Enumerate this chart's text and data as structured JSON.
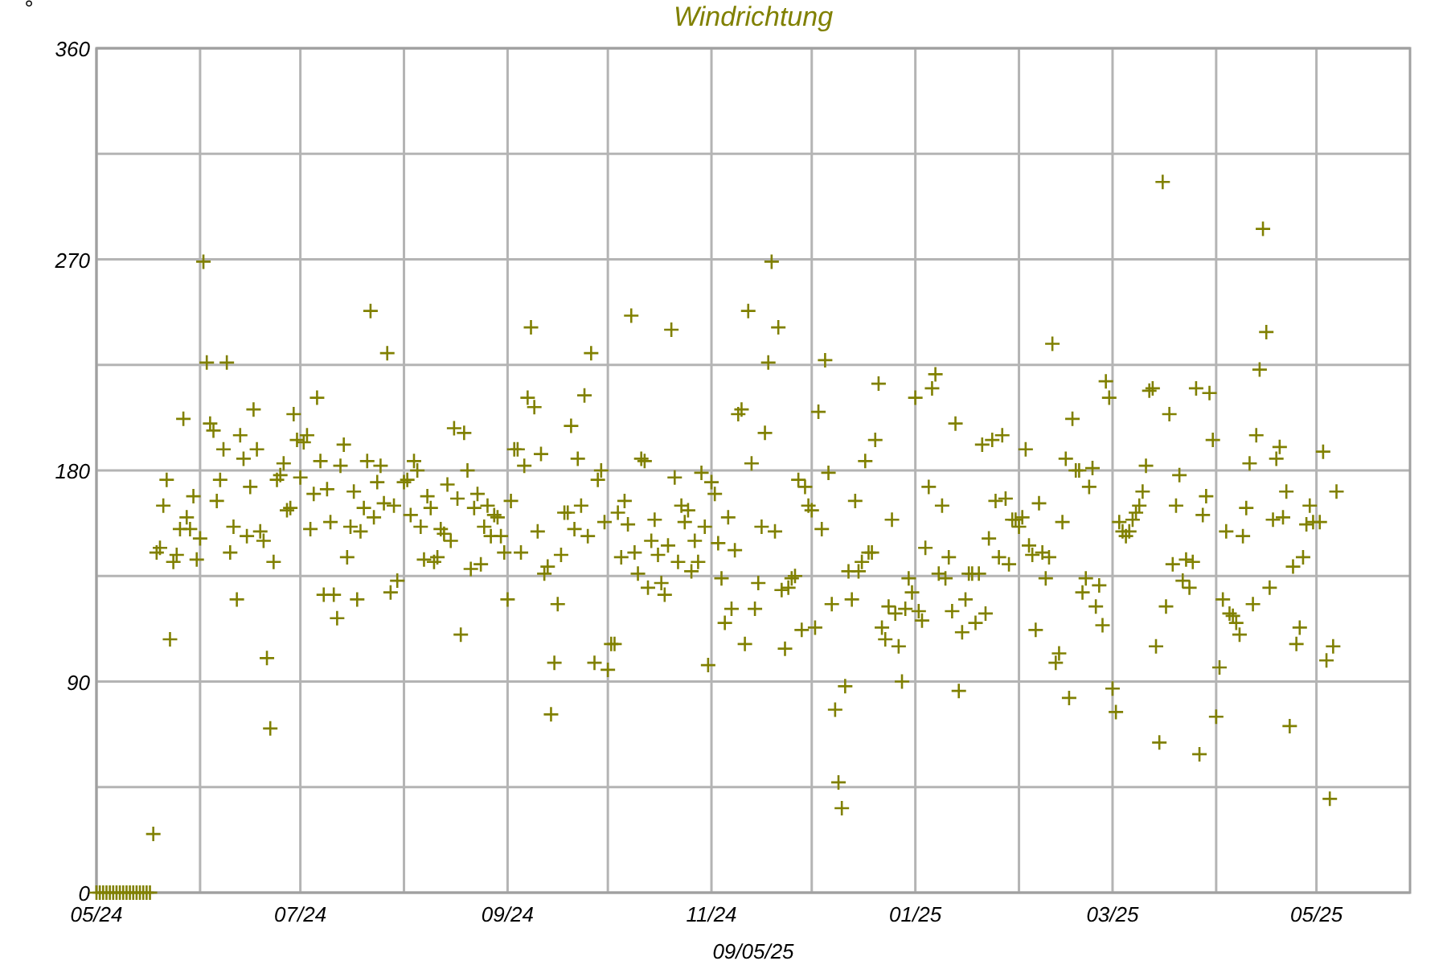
{
  "chart_data": {
    "type": "scatter",
    "title": "Windrichtung",
    "ylabel": "°",
    "xlabel": "09/05/25",
    "marker": "cross",
    "grid": true,
    "xlim": [
      "2024-05-01",
      "2025-05-29"
    ],
    "xticks": [
      {
        "value": "2024-05-01",
        "label": "05/24"
      },
      {
        "value": "2024-06-01",
        "label": null
      },
      {
        "value": "2024-07-01",
        "label": "07/24"
      },
      {
        "value": "2024-08-01",
        "label": null
      },
      {
        "value": "2024-09-01",
        "label": "09/24"
      },
      {
        "value": "2024-10-01",
        "label": null
      },
      {
        "value": "2024-11-01",
        "label": "11/24"
      },
      {
        "value": "2024-12-01",
        "label": null
      },
      {
        "value": "2025-01-01",
        "label": "01/25"
      },
      {
        "value": "2025-02-01",
        "label": null
      },
      {
        "value": "2025-03-01",
        "label": "03/25"
      },
      {
        "value": "2025-04-01",
        "label": null
      },
      {
        "value": "2025-05-01",
        "label": "05/25"
      }
    ],
    "ylim": [
      0,
      360
    ],
    "yticks": [
      0,
      {
        "value": 45,
        "label": null
      },
      90,
      {
        "value": 135,
        "label": null
      },
      180,
      {
        "value": 225,
        "label": null
      },
      270,
      {
        "value": 315,
        "label": null
      },
      360
    ],
    "series": [
      {
        "color": "#808000",
        "x": [
          "2024-05-01",
          "2024-05-02",
          "2024-05-03",
          "2024-05-04",
          "2024-05-05",
          "2024-05-06",
          "2024-05-07",
          "2024-05-08",
          "2024-05-09",
          "2024-05-10",
          "2024-05-11",
          "2024-05-12",
          "2024-05-13",
          "2024-05-14",
          "2024-05-15",
          "2024-05-16",
          "2024-05-17",
          "2024-05-18",
          "2024-05-19",
          "2024-05-20",
          "2024-05-21",
          "2024-05-22",
          "2024-05-23",
          "2024-05-24",
          "2024-05-25",
          "2024-05-26",
          "2024-05-27",
          "2024-05-28",
          "2024-05-29",
          "2024-05-30",
          "2024-05-31",
          "2024-06-01",
          "2024-06-02",
          "2024-06-03",
          "2024-06-04",
          "2024-06-05",
          "2024-06-06",
          "2024-06-07",
          "2024-06-08",
          "2024-06-09",
          "2024-06-10",
          "2024-06-11",
          "2024-06-12",
          "2024-06-13",
          "2024-06-14",
          "2024-06-15",
          "2024-06-16",
          "2024-06-17",
          "2024-06-18",
          "2024-06-19",
          "2024-06-20",
          "2024-06-21",
          "2024-06-22",
          "2024-06-23",
          "2024-06-24",
          "2024-06-25",
          "2024-06-26",
          "2024-06-27",
          "2024-06-28",
          "2024-06-29",
          "2024-06-30",
          "2024-07-01",
          "2024-07-02",
          "2024-07-03",
          "2024-07-04",
          "2024-07-05",
          "2024-07-06",
          "2024-07-07",
          "2024-07-08",
          "2024-07-09",
          "2024-07-10",
          "2024-07-11",
          "2024-07-12",
          "2024-07-13",
          "2024-07-14",
          "2024-07-15",
          "2024-07-16",
          "2024-07-17",
          "2024-07-18",
          "2024-07-19",
          "2024-07-20",
          "2024-07-21",
          "2024-07-22",
          "2024-07-23",
          "2024-07-24",
          "2024-07-25",
          "2024-07-26",
          "2024-07-27",
          "2024-07-28",
          "2024-07-29",
          "2024-07-30",
          "2024-08-01",
          "2024-08-02",
          "2024-08-03",
          "2024-08-04",
          "2024-08-05",
          "2024-08-06",
          "2024-08-07",
          "2024-08-08",
          "2024-08-09",
          "2024-08-10",
          "2024-08-11",
          "2024-08-12",
          "2024-08-13",
          "2024-08-14",
          "2024-08-15",
          "2024-08-16",
          "2024-08-17",
          "2024-08-18",
          "2024-08-19",
          "2024-08-20",
          "2024-08-21",
          "2024-08-22",
          "2024-08-23",
          "2024-08-24",
          "2024-08-25",
          "2024-08-26",
          "2024-08-27",
          "2024-08-28",
          "2024-08-29",
          "2024-08-30",
          "2024-08-31",
          "2024-09-01",
          "2024-09-02",
          "2024-09-03",
          "2024-09-04",
          "2024-09-05",
          "2024-09-06",
          "2024-09-07",
          "2024-09-08",
          "2024-09-09",
          "2024-09-10",
          "2024-09-11",
          "2024-09-12",
          "2024-09-13",
          "2024-09-14",
          "2024-09-15",
          "2024-09-16",
          "2024-09-17",
          "2024-09-18",
          "2024-09-19",
          "2024-09-20",
          "2024-09-21",
          "2024-09-22",
          "2024-09-23",
          "2024-09-24",
          "2024-09-25",
          "2024-09-26",
          "2024-09-27",
          "2024-09-28",
          "2024-09-29",
          "2024-09-30",
          "2024-10-01",
          "2024-10-02",
          "2024-10-03",
          "2024-10-04",
          "2024-10-05",
          "2024-10-06",
          "2024-10-07",
          "2024-10-08",
          "2024-10-09",
          "2024-10-10",
          "2024-10-11",
          "2024-10-12",
          "2024-10-13",
          "2024-10-14",
          "2024-10-15",
          "2024-10-16",
          "2024-10-17",
          "2024-10-18",
          "2024-10-19",
          "2024-10-20",
          "2024-10-21",
          "2024-10-22",
          "2024-10-23",
          "2024-10-24",
          "2024-10-25",
          "2024-10-26",
          "2024-10-27",
          "2024-10-28",
          "2024-10-29",
          "2024-10-30",
          "2024-10-31",
          "2024-11-01",
          "2024-11-02",
          "2024-11-03",
          "2024-11-04",
          "2024-11-05",
          "2024-11-06",
          "2024-11-07",
          "2024-11-08",
          "2024-11-09",
          "2024-11-10",
          "2024-11-11",
          "2024-11-12",
          "2024-11-13",
          "2024-11-14",
          "2024-11-15",
          "2024-11-16",
          "2024-11-17",
          "2024-11-18",
          "2024-11-19",
          "2024-11-20",
          "2024-11-21",
          "2024-11-22",
          "2024-11-23",
          "2024-11-24",
          "2024-11-25",
          "2024-11-26",
          "2024-11-27",
          "2024-11-28",
          "2024-11-29",
          "2024-11-30",
          "2024-12-01",
          "2024-12-02",
          "2024-12-03",
          "2024-12-04",
          "2024-12-05",
          "2024-12-06",
          "2024-12-07",
          "2024-12-08",
          "2024-12-09",
          "2024-12-10",
          "2024-12-11",
          "2024-12-12",
          "2024-12-13",
          "2024-12-14",
          "2024-12-15",
          "2024-12-16",
          "2024-12-17",
          "2024-12-18",
          "2024-12-19",
          "2024-12-20",
          "2024-12-21",
          "2024-12-22",
          "2024-12-23",
          "2024-12-24",
          "2024-12-25",
          "2024-12-26",
          "2024-12-27",
          "2024-12-28",
          "2024-12-29",
          "2024-12-30",
          "2024-12-31",
          "2025-01-01",
          "2025-01-02",
          "2025-01-03",
          "2025-01-04",
          "2025-01-05",
          "2025-01-06",
          "2025-01-07",
          "2025-01-08",
          "2025-01-09",
          "2025-01-10",
          "2025-01-11",
          "2025-01-12",
          "2025-01-13",
          "2025-01-14",
          "2025-01-15",
          "2025-01-16",
          "2025-01-17",
          "2025-01-18",
          "2025-01-19",
          "2025-01-20",
          "2025-01-21",
          "2025-01-22",
          "2025-01-23",
          "2025-01-24",
          "2025-01-25",
          "2025-01-26",
          "2025-01-27",
          "2025-01-28",
          "2025-01-29",
          "2025-01-30",
          "2025-01-31",
          "2025-02-01",
          "2025-02-02",
          "2025-02-03",
          "2025-02-04",
          "2025-02-05",
          "2025-02-06",
          "2025-02-07",
          "2025-02-08",
          "2025-02-09",
          "2025-02-10",
          "2025-02-11",
          "2025-02-12",
          "2025-02-13",
          "2025-02-14",
          "2025-02-15",
          "2025-02-16",
          "2025-02-17",
          "2025-02-18",
          "2025-02-19",
          "2025-02-20",
          "2025-02-21",
          "2025-02-22",
          "2025-02-23",
          "2025-02-24",
          "2025-02-25",
          "2025-02-26",
          "2025-02-27",
          "2025-02-28",
          "2025-03-01",
          "2025-03-02",
          "2025-03-03",
          "2025-03-04",
          "2025-03-05",
          "2025-03-06",
          "2025-03-07",
          "2025-03-08",
          "2025-03-09",
          "2025-03-10",
          "2025-03-11",
          "2025-03-12",
          "2025-03-13",
          "2025-03-14",
          "2025-03-15",
          "2025-03-16",
          "2025-03-17",
          "2025-03-18",
          "2025-03-19",
          "2025-03-20",
          "2025-03-21",
          "2025-03-22",
          "2025-03-23",
          "2025-03-24",
          "2025-03-25",
          "2025-03-26",
          "2025-03-27",
          "2025-03-28",
          "2025-03-29",
          "2025-03-30",
          "2025-03-31",
          "2025-04-01",
          "2025-04-02",
          "2025-04-03",
          "2025-04-04",
          "2025-04-05",
          "2025-04-06",
          "2025-04-07",
          "2025-04-08",
          "2025-04-09",
          "2025-04-10",
          "2025-04-11",
          "2025-04-12",
          "2025-04-13",
          "2025-04-14",
          "2025-04-15",
          "2025-04-16",
          "2025-04-17",
          "2025-04-18",
          "2025-04-19",
          "2025-04-20",
          "2025-04-21",
          "2025-04-22",
          "2025-04-23",
          "2025-04-24",
          "2025-04-25",
          "2025-04-26",
          "2025-04-27",
          "2025-04-28",
          "2025-04-29",
          "2025-04-30",
          "2025-05-02",
          "2025-05-03",
          "2025-05-04",
          "2025-05-05",
          "2025-05-06",
          "2025-05-07"
        ],
        "values": [
          0,
          0,
          0,
          0,
          0,
          0,
          0,
          0,
          0,
          0,
          0,
          0,
          0,
          0,
          0,
          0,
          0,
          25,
          145,
          147,
          165,
          176,
          108,
          141,
          144,
          155,
          202,
          160,
          155,
          169,
          142,
          151,
          269,
          226,
          200,
          197,
          167,
          176,
          189,
          226,
          145,
          156,
          125,
          195,
          185,
          152,
          173,
          206,
          189,
          154,
          150,
          100,
          70,
          141,
          176,
          178,
          183,
          163,
          164,
          204,
          193,
          177,
          192,
          195,
          155,
          170,
          211,
          184,
          127,
          172,
          158,
          127,
          117,
          182,
          191,
          143,
          156,
          171,
          125,
          154,
          164,
          184,
          248,
          160,
          175,
          182,
          166,
          230,
          128,
          165,
          133,
          175,
          176,
          161,
          184,
          180,
          156,
          142,
          169,
          164,
          141,
          143,
          155,
          153,
          174,
          150,
          198,
          168,
          110,
          196,
          180,
          138,
          164,
          170,
          140,
          156,
          165,
          152,
          161,
          160,
          152,
          145,
          125,
          167,
          189,
          189,
          145,
          182,
          211,
          241,
          207,
          154,
          187,
          136,
          139,
          76,
          98,
          123,
          144,
          162,
          162,
          199,
          155,
          185,
          165,
          212,
          152,
          230,
          98,
          176,
          180,
          158,
          95,
          106,
          106,
          162,
          143,
          167,
          157,
          246,
          145,
          136,
          185,
          184,
          130,
          150,
          159,
          144,
          132,
          127,
          148,
          240,
          177,
          141,
          165,
          158,
          163,
          137,
          150,
          141,
          179,
          156,
          97,
          175,
          170,
          149,
          134,
          115,
          160,
          121,
          146,
          204,
          206,
          106,
          248,
          183,
          121,
          132,
          156,
          196,
          226,
          269,
          154,
          241,
          129,
          104,
          130,
          134,
          135,
          176,
          112,
          173,
          165,
          163,
          113,
          205,
          155,
          227,
          179,
          123,
          78,
          47,
          36,
          88,
          137,
          125,
          167,
          137,
          141,
          184,
          145,
          145,
          193,
          217,
          113,
          108,
          122,
          159,
          119,
          105,
          90,
          121,
          134,
          128,
          211,
          120,
          116,
          147,
          173,
          215,
          221,
          136,
          165,
          134,
          143,
          120,
          200,
          86,
          111,
          125,
          136,
          136,
          115,
          136,
          191,
          119,
          151,
          193,
          167,
          143,
          195,
          168,
          140,
          159,
          159,
          156,
          160,
          189,
          148,
          144,
          112,
          166,
          145,
          134,
          143,
          234,
          98,
          102,
          158,
          185,
          83,
          202,
          180,
          180,
          128,
          134,
          173,
          181,
          122,
          131,
          114,
          218,
          211,
          87,
          77,
          158,
          154,
          152,
          154,
          159,
          162,
          165,
          171,
          182,
          214,
          215,
          105,
          64,
          303,
          122,
          204,
          140,
          165,
          178,
          133,
          142,
          130,
          141,
          215,
          59,
          161,
          169,
          213,
          193,
          75,
          96,
          125,
          154,
          119,
          118,
          115,
          110,
          152,
          164,
          183,
          123,
          195,
          223,
          283,
          239,
          130,
          159,
          185,
          190,
          160,
          171,
          71,
          139,
          106,
          113,
          143,
          157,
          165,
          158,
          158,
          188,
          99,
          40,
          105,
          171
        ]
      }
    ]
  }
}
